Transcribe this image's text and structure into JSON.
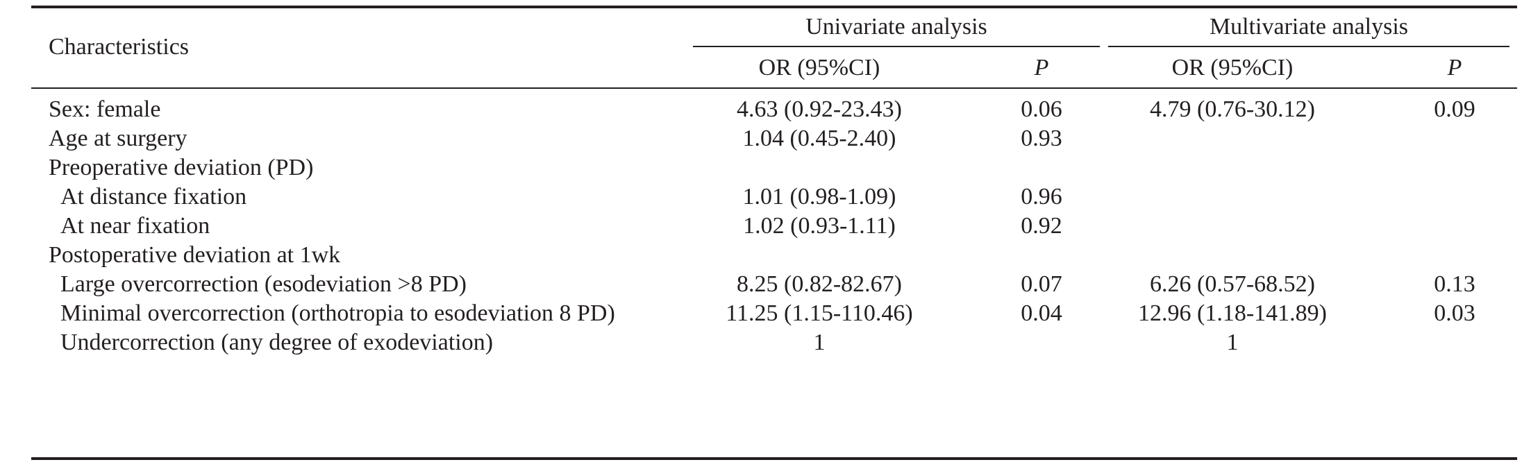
{
  "header": {
    "characteristics": "Characteristics",
    "univariate": "Univariate analysis",
    "multivariate": "Multivariate analysis",
    "or_label": "OR (95%CI)",
    "p_label": "P"
  },
  "rows": [
    {
      "label": "Sex: female",
      "indent": false,
      "uni_or": "4.63 (0.92-23.43)",
      "uni_p": "0.06",
      "multi_or": "4.79 (0.76-30.12)",
      "multi_p": "0.09"
    },
    {
      "label": "Age at surgery",
      "indent": false,
      "uni_or": "1.04 (0.45-2.40)",
      "uni_p": "0.93",
      "multi_or": "",
      "multi_p": ""
    },
    {
      "label": "Preoperative deviation (PD)",
      "indent": false,
      "uni_or": "",
      "uni_p": "",
      "multi_or": "",
      "multi_p": ""
    },
    {
      "label": "At distance fixation",
      "indent": true,
      "uni_or": "1.01 (0.98-1.09)",
      "uni_p": "0.96",
      "multi_or": "",
      "multi_p": ""
    },
    {
      "label": "At near fixation",
      "indent": true,
      "uni_or": "1.02 (0.93-1.11)",
      "uni_p": "0.92",
      "multi_or": "",
      "multi_p": ""
    },
    {
      "label": "Postoperative deviation at 1wk",
      "indent": false,
      "uni_or": "",
      "uni_p": "",
      "multi_or": "",
      "multi_p": ""
    },
    {
      "label": "Large overcorrection (esodeviation >8 PD)",
      "indent": true,
      "uni_or": "8.25 (0.82-82.67)",
      "uni_p": "0.07",
      "multi_or": "6.26 (0.57-68.52)",
      "multi_p": "0.13"
    },
    {
      "label": "Minimal overcorrection (orthotropia to esodeviation 8 PD)",
      "indent": true,
      "uni_or": "11.25 (1.15-110.46)",
      "uni_p": "0.04",
      "multi_or": "12.96 (1.18-141.89)",
      "multi_p": "0.03"
    },
    {
      "label": "Undercorrection (any degree of exodeviation)",
      "indent": true,
      "uni_or": "1",
      "uni_p": "",
      "multi_or": "1",
      "multi_p": ""
    }
  ]
}
